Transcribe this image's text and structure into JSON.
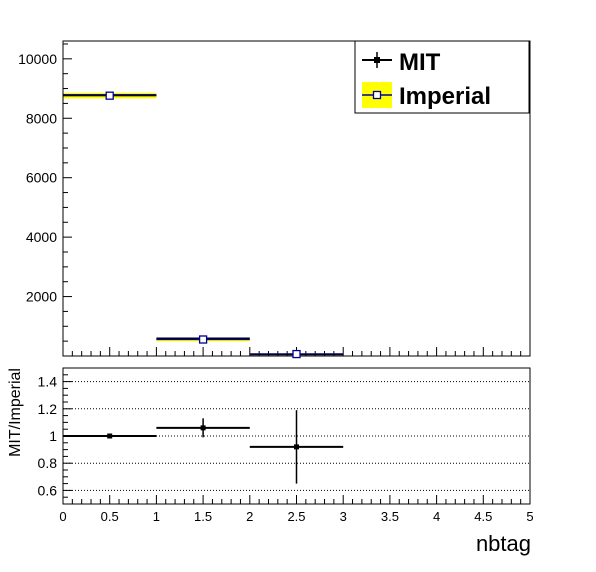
{
  "chart_data": [
    {
      "type": "histogram",
      "panel": "main",
      "bin_edges": [
        0,
        1,
        2,
        3
      ],
      "series": [
        {
          "name": "MIT",
          "values": [
            8780,
            590,
            60
          ],
          "errors": [
            95,
            24,
            8
          ],
          "color": "#000000",
          "marker": "filled-square"
        },
        {
          "name": "Imperial",
          "values": [
            8760,
            555,
            65
          ],
          "errors": [
            94,
            23,
            8
          ],
          "color": "#000099",
          "fill": "#ffff00",
          "marker": "open-square"
        }
      ],
      "xlim": [
        0,
        5
      ],
      "ylim": [
        0,
        10600
      ],
      "y_ticks": [
        2000,
        4000,
        6000,
        8000,
        10000
      ],
      "y_tick_labels": [
        "2000",
        "4000",
        "6000",
        "8000",
        "10000"
      ],
      "legend_position": "top-right",
      "grid": false
    },
    {
      "type": "ratio",
      "panel": "ratio",
      "x": [
        0.5,
        1.5,
        2.5
      ],
      "x_half_width": [
        0.5,
        0.5,
        0.5
      ],
      "values": [
        1.0,
        1.06,
        0.92
      ],
      "errors": [
        0.015,
        0.07,
        0.27
      ],
      "ylabel": "MIT/Imperial",
      "xlabel": "nbtag",
      "xlim": [
        0,
        5
      ],
      "ylim": [
        0.5,
        1.5
      ],
      "y_ticks": [
        0.6,
        0.8,
        1.0,
        1.2,
        1.4
      ],
      "y_tick_labels": [
        "0.6",
        "0.8",
        "1",
        "1.2",
        "1.4"
      ],
      "x_ticks": [
        0,
        0.5,
        1,
        1.5,
        2,
        2.5,
        3,
        3.5,
        4,
        4.5,
        5
      ],
      "x_tick_labels": [
        "0",
        "0.5",
        "1",
        "1.5",
        "2",
        "2.5",
        "3",
        "3.5",
        "4",
        "4.5",
        "5"
      ],
      "grid": "horizontal-dotted"
    }
  ]
}
